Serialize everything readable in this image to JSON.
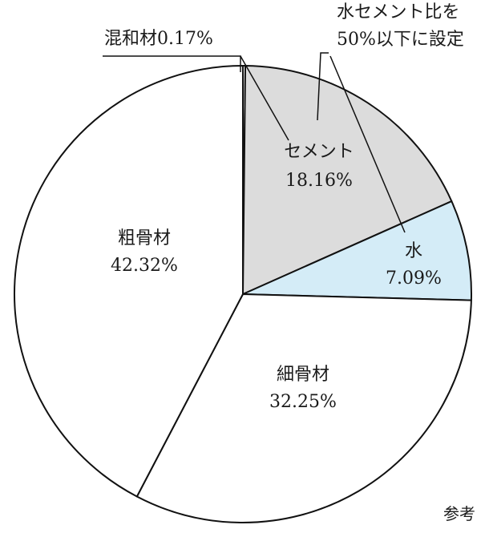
{
  "chart_data": {
    "type": "pie",
    "slices": [
      {
        "name": "混和材",
        "value": 0.17,
        "label": "混和材0.17%",
        "color": "#ffffff"
      },
      {
        "name": "セメント",
        "value": 18.16,
        "label": "18.16%",
        "color": "#dcdcdc"
      },
      {
        "name": "水",
        "value": 7.09,
        "label": "7.09%",
        "color": "#d4ecf7"
      },
      {
        "name": "細骨材",
        "value": 32.25,
        "label": "32.25%",
        "color": "#ffffff"
      },
      {
        "name": "粗骨材",
        "value": 42.32,
        "label": "42.32%",
        "color": "#ffffff"
      }
    ],
    "annotation": {
      "line1": "水セメント比を",
      "line2": "50%以下に設定"
    }
  },
  "source_note": "参考"
}
